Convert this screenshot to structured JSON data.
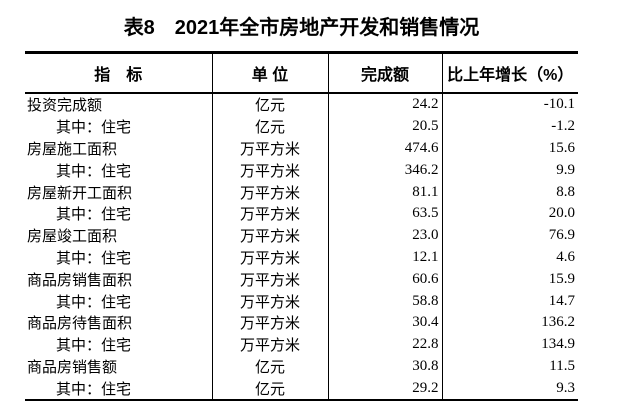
{
  "page": {
    "background_color": "#ffffff",
    "text_color": "#000000",
    "border_color": "#000000"
  },
  "title": "表8　2021年全市房地产开发和销售情况",
  "table": {
    "headers": {
      "indicator": "指　标",
      "unit": "单 位",
      "completed": "完成额",
      "growth": "比上年增长（%）"
    },
    "rows": [
      {
        "indicator": "投资完成额",
        "indent": false,
        "unit": "亿元",
        "completed": "24.2",
        "growth": "-10.1"
      },
      {
        "indicator": "其中：住宅",
        "indent": true,
        "unit": "亿元",
        "completed": "20.5",
        "growth": "-1.2"
      },
      {
        "indicator": "房屋施工面积",
        "indent": false,
        "unit": "万平方米",
        "completed": "474.6",
        "growth": "15.6"
      },
      {
        "indicator": "其中：住宅",
        "indent": true,
        "unit": "万平方米",
        "completed": "346.2",
        "growth": "9.9"
      },
      {
        "indicator": "房屋新开工面积",
        "indent": false,
        "unit": "万平方米",
        "completed": "81.1",
        "growth": "8.8"
      },
      {
        "indicator": "其中：住宅",
        "indent": true,
        "unit": "万平方米",
        "completed": "63.5",
        "growth": "20.0"
      },
      {
        "indicator": "房屋竣工面积",
        "indent": false,
        "unit": "万平方米",
        "completed": "23.0",
        "growth": "76.9"
      },
      {
        "indicator": "其中：住宅",
        "indent": true,
        "unit": "万平方米",
        "completed": "12.1",
        "growth": "4.6"
      },
      {
        "indicator": "商品房销售面积",
        "indent": false,
        "unit": "万平方米",
        "completed": "60.6",
        "growth": "15.9"
      },
      {
        "indicator": "其中：住宅",
        "indent": true,
        "unit": "万平方米",
        "completed": "58.8",
        "growth": "14.7"
      },
      {
        "indicator": "商品房待售面积",
        "indent": false,
        "unit": "万平方米",
        "completed": "30.4",
        "growth": "136.2"
      },
      {
        "indicator": "其中：住宅",
        "indent": true,
        "unit": "万平方米",
        "completed": "22.8",
        "growth": "134.9"
      },
      {
        "indicator": "商品房销售额",
        "indent": false,
        "unit": "亿元",
        "completed": "30.8",
        "growth": "11.5"
      },
      {
        "indicator": "其中：住宅",
        "indent": true,
        "unit": "亿元",
        "completed": "29.2",
        "growth": "9.3"
      }
    ]
  }
}
